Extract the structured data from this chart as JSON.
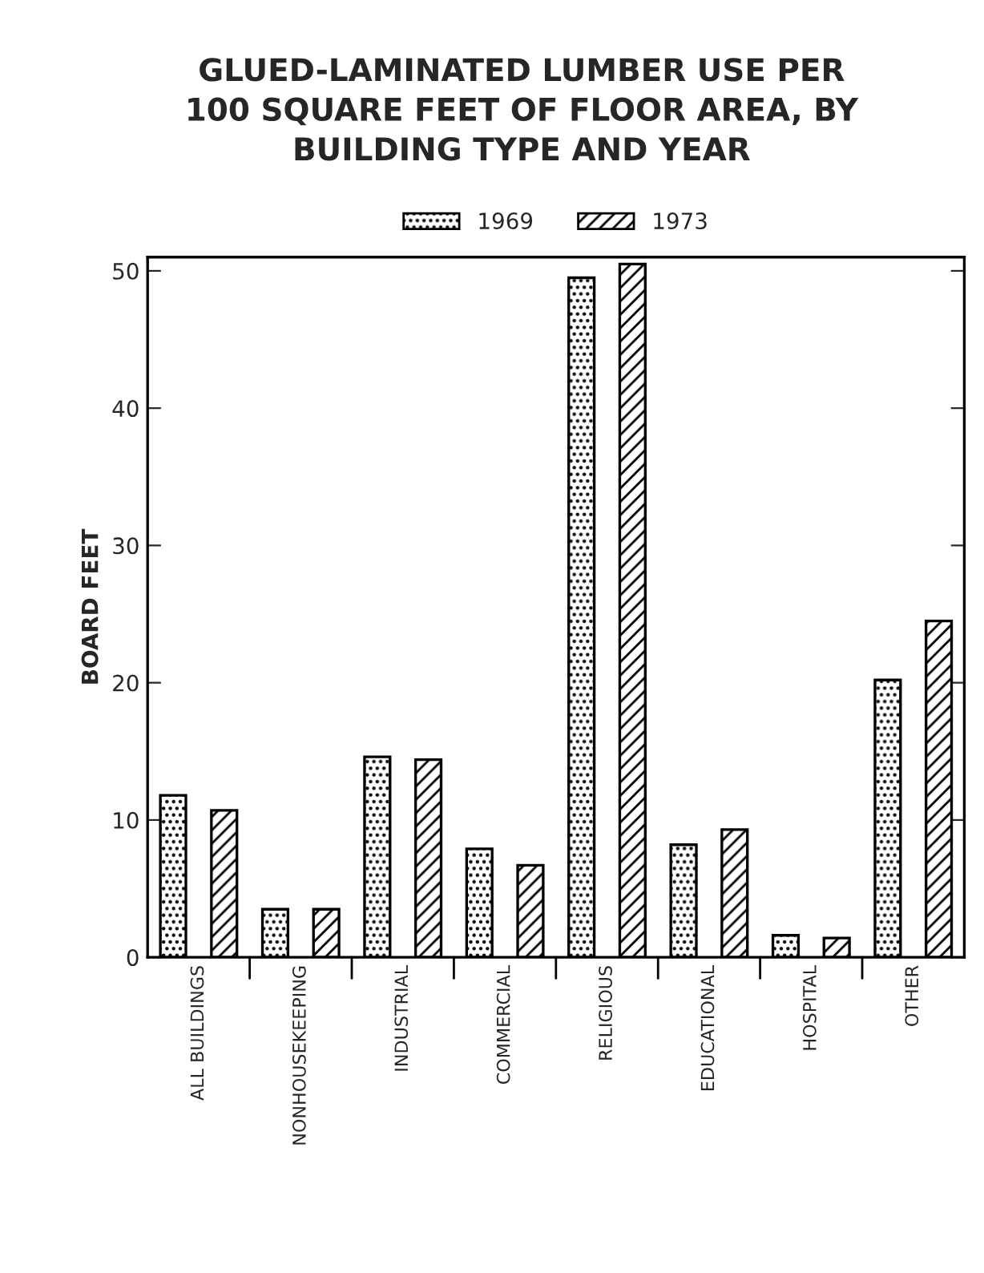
{
  "chart_data": {
    "type": "bar",
    "title": "GLUED-LAMINATED LUMBER USE PER\n100 SQUARE FEET OF FLOOR AREA, BY\nBUILDING TYPE AND YEAR",
    "ylabel": "BOARD FEET",
    "categories": [
      "ALL BUILDINGS",
      "NONHOUSEKEEPING",
      "INDUSTRIAL",
      "COMMERCIAL",
      "RELIGIOUS",
      "EDUCATIONAL",
      "HOSPITAL",
      "OTHER"
    ],
    "series": [
      {
        "name": "1969",
        "color": "#000000",
        "values": [
          11.8,
          3.5,
          14.6,
          7.9,
          49.5,
          8.2,
          1.6,
          20.2
        ]
      },
      {
        "name": "1973",
        "color": "#000000",
        "values": [
          10.7,
          3.5,
          14.4,
          6.7,
          50.5,
          9.3,
          1.4,
          24.5
        ]
      }
    ],
    "ylim": [
      0,
      51
    ],
    "yticks": [
      0,
      10,
      20,
      30,
      40,
      50
    ],
    "grid": false,
    "legend": "top"
  }
}
